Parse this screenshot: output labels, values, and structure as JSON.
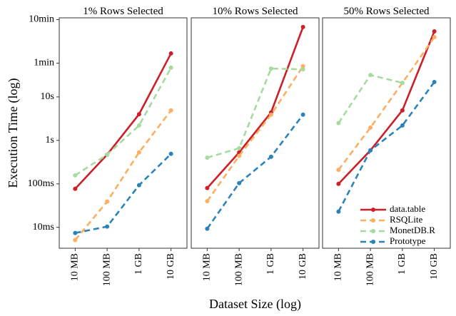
{
  "chart_data": [
    {
      "type": "line",
      "title": "1%  Rows Selected",
      "ylabel": "Execution Time (log)",
      "log_y": true,
      "categories": [
        "10 MB",
        "100 MB",
        "1 GB",
        "10 GB"
      ],
      "ylim": [
        0.0033,
        660
      ],
      "yticks": [
        {
          "value": 0.01,
          "label": "10ms"
        },
        {
          "value": 0.1,
          "label": "100ms"
        },
        {
          "value": 1,
          "label": "1s"
        },
        {
          "value": 10,
          "label": "10s"
        },
        {
          "value": 60,
          "label": "1min"
        },
        {
          "value": 600,
          "label": "10min"
        }
      ],
      "series": [
        {
          "name": "data.table",
          "color": "#cc1f27",
          "linestyle": "solid",
          "values": [
            0.077,
            0.47,
            4.0,
            100
          ]
        },
        {
          "name": "RSQLite",
          "color": "#fdae61",
          "linestyle": "dashed",
          "values": [
            0.0051,
            0.039,
            0.53,
            4.9
          ]
        },
        {
          "name": "MonetDB.R",
          "color": "#a6dba0",
          "linestyle": "dashed",
          "values": [
            0.157,
            0.47,
            2.2,
            47
          ]
        },
        {
          "name": "Prototype",
          "color": "#2b83ba",
          "linestyle": "dashed",
          "values": [
            0.0074,
            0.0104,
            0.093,
            0.49
          ]
        }
      ]
    },
    {
      "type": "line",
      "title": "10%  Rows Selected",
      "xlabel": "Dataset Size (log)",
      "log_y": true,
      "categories": [
        "10 MB",
        "100 MB",
        "1 GB",
        "10 GB"
      ],
      "ylim": [
        0.0033,
        660
      ],
      "series": [
        {
          "name": "data.table",
          "color": "#cc1f27",
          "linestyle": "solid",
          "values": [
            0.08,
            0.53,
            4.4,
            405
          ]
        },
        {
          "name": "RSQLite",
          "color": "#fdae61",
          "linestyle": "dashed",
          "values": [
            0.04,
            0.44,
            3.9,
            51
          ]
        },
        {
          "name": "MonetDB.R",
          "color": "#a6dba0",
          "linestyle": "dashed",
          "values": [
            0.4,
            0.66,
            45,
            43
          ]
        },
        {
          "name": "Prototype",
          "color": "#2b83ba",
          "linestyle": "dashed",
          "values": [
            0.0093,
            0.104,
            0.42,
            3.9
          ]
        }
      ]
    },
    {
      "type": "line",
      "title": "50%  Rows Selected",
      "log_y": true,
      "legend": "lower right",
      "categories": [
        "10 MB",
        "100 MB",
        "1 GB",
        "10 GB"
      ],
      "ylim": [
        0.0033,
        660
      ],
      "series": [
        {
          "name": "data.table",
          "color": "#cc1f27",
          "linestyle": "solid",
          "values": [
            0.1,
            0.59,
            4.9,
            322
          ]
        },
        {
          "name": "RSQLite",
          "color": "#fdae61",
          "linestyle": "dashed",
          "values": [
            0.21,
            1.97,
            21,
            238
          ]
        },
        {
          "name": "MonetDB.R",
          "color": "#a6dba0",
          "linestyle": "dashed",
          "values": [
            2.5,
            32,
            21,
            null
          ]
        },
        {
          "name": "Prototype",
          "color": "#2b83ba",
          "linestyle": "dashed",
          "values": [
            0.023,
            0.59,
            2.2,
            22
          ]
        }
      ]
    }
  ]
}
